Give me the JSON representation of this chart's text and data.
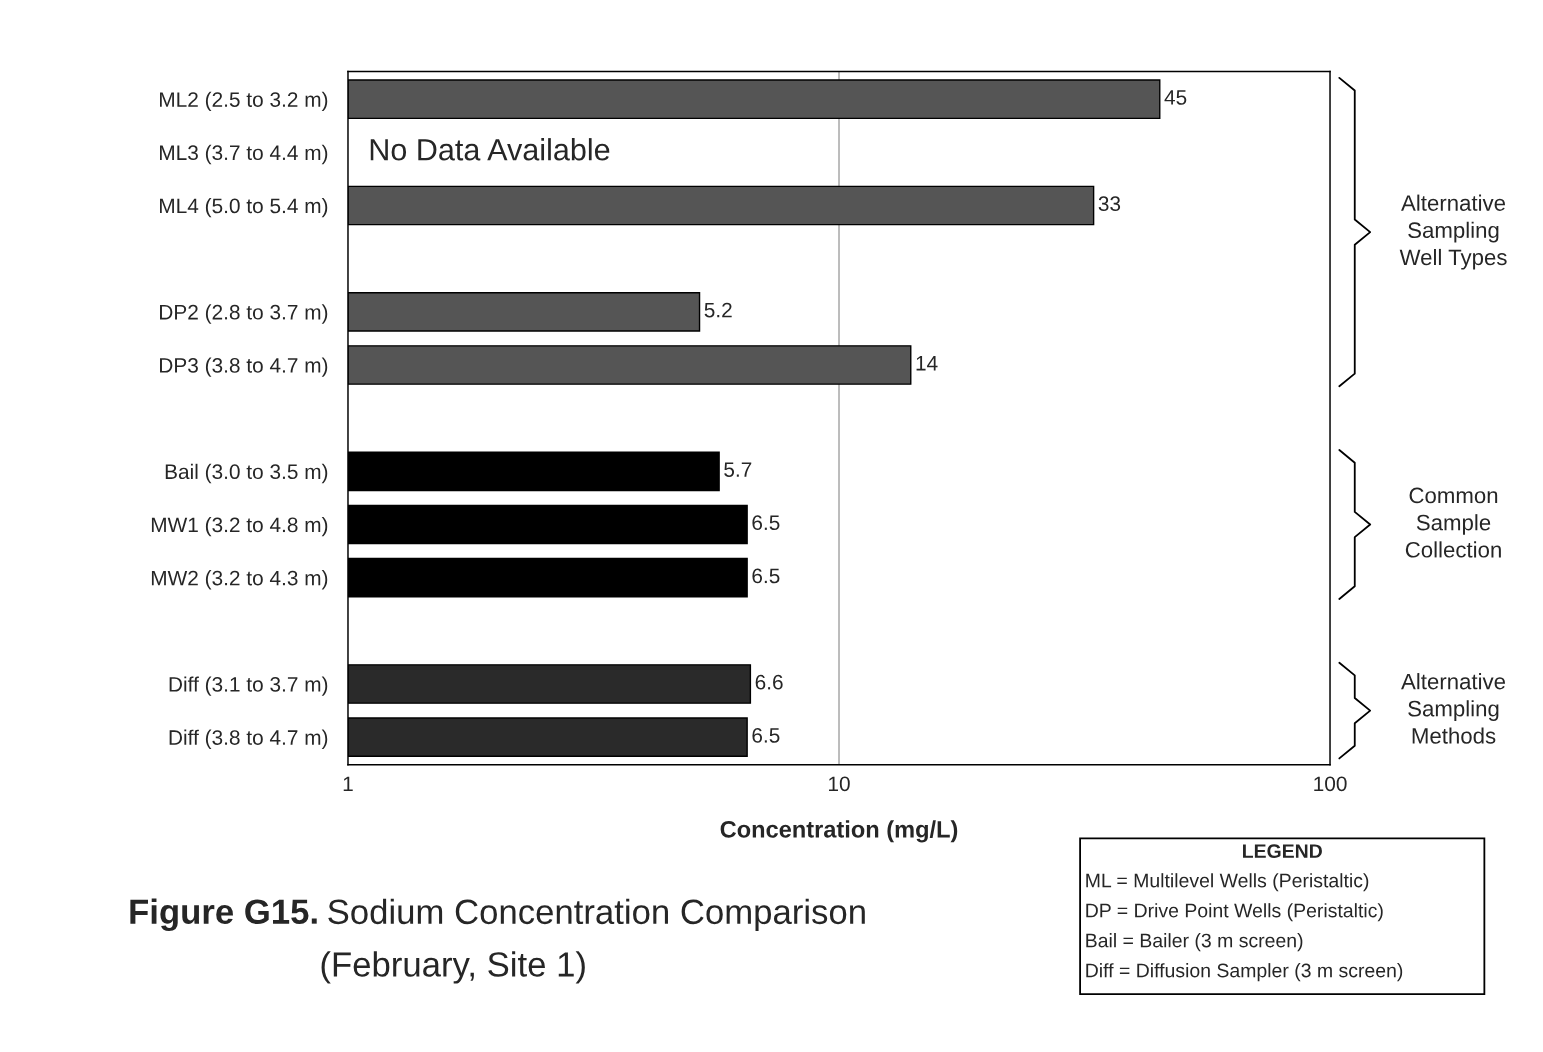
{
  "chart_data": {
    "type": "bar",
    "orientation": "horizontal",
    "title": "Figure G15. Sodium Concentration Comparison (February, Site 1)",
    "xlabel": "Concentration (mg/L)",
    "categories": [
      "ML2 (2.5 to 3.2 m)",
      "ML3 (3.7 to 4.4 m)",
      "ML4 (5.0 to 5.4 m)",
      null,
      "DP2 (2.8 to 3.7 m)",
      "DP3 (3.8 to 4.7 m)",
      null,
      "Bail (3.0 to 3.5 m)",
      "MW1 (3.2 to 4.8 m)",
      "MW2 (3.2 to 4.3 m)",
      null,
      "Diff (3.1 to 3.7 m)",
      "Diff (3.8 to 4.7 m)"
    ],
    "values": [
      45,
      null,
      33,
      null,
      5.2,
      14,
      null,
      5.7,
      6.5,
      6.5,
      null,
      6.6,
      6.5
    ],
    "colors": [
      "#555555",
      null,
      "#555555",
      null,
      "#555555",
      "#555555",
      null,
      "#000000",
      "#000000",
      "#000000",
      null,
      "#2a2a2a",
      "#2a2a2a"
    ],
    "log": "x",
    "xlim": [
      1,
      100
    ],
    "xticks": [
      1,
      10,
      100
    ],
    "grid": "x",
    "data_labels": true,
    "annotations": [
      "No Data Available",
      "Alternative\nSampling\nWell Types",
      "Common\nSample\nCollection",
      "Alternative\nSampling\nMethods",
      "LEGEND",
      "ML = Multilevel Wells (Peristaltic)",
      "DP = Drive Point Wells (Peristaltic)",
      "Bail = Bailer (3 m screen)",
      "Diff = Diffusion Sampler (3 m screen)"
    ]
  }
}
